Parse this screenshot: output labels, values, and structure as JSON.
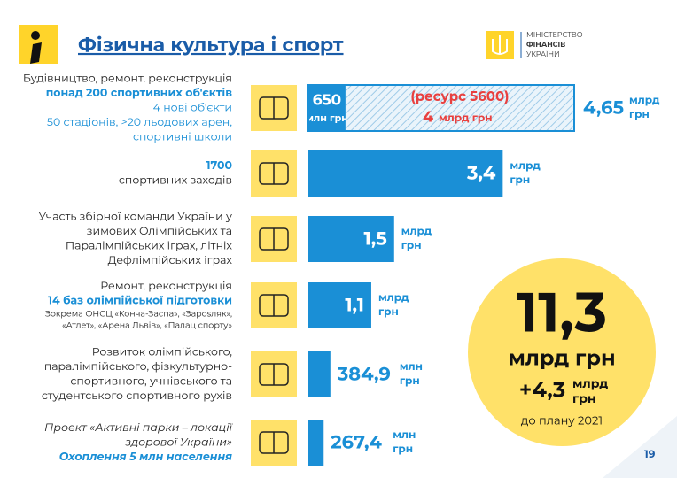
{
  "header": {
    "title": "Фізична культура і спорт",
    "ministry": [
      "МІНІСТЕРСТВО",
      "ФІНАНСІВ",
      "УКРАЇНИ"
    ]
  },
  "rows": [
    {
      "lines": [
        {
          "text": "Будівництво, ремонт, реконструкція",
          "style": "normal"
        },
        {
          "text": "понад 200 спортивних об'єктів",
          "style": "blue-bold"
        },
        {
          "text": "4 нові об'єкти",
          "style": "blue"
        },
        {
          "text": "50 стадіонів, >20 льодових арен,",
          "style": "blue"
        },
        {
          "text": "спортивні школи",
          "style": "blue"
        }
      ],
      "bars": [
        {
          "value": 650,
          "label": "650",
          "unit": [
            "млн грн"
          ]
        },
        {
          "value": 4000,
          "note": "(ресурс 5600)",
          "label": "4",
          "unit": [
            "млрд грн"
          ],
          "hatched": true
        }
      ],
      "total": {
        "value": 4650,
        "label": "4,65",
        "unit": [
          "млрд",
          "грн"
        ]
      }
    },
    {
      "lines": [
        {
          "text": "1700",
          "style": "blue-bold"
        },
        {
          "text": "спортивних заходів",
          "style": "normal"
        }
      ],
      "bars": [
        {
          "value": 3400,
          "label": "3,4",
          "unit": [
            "млрд",
            "грн"
          ]
        }
      ]
    },
    {
      "lines": [
        {
          "text": "Участь  збірної команди України у",
          "style": "normal"
        },
        {
          "text": "зимових Олімпійських та",
          "style": "normal"
        },
        {
          "text": "Паралімпійських іграх, літніх",
          "style": "normal"
        },
        {
          "text": "Дефлімпійських іграх",
          "style": "normal"
        }
      ],
      "bars": [
        {
          "value": 1500,
          "label": "1,5",
          "unit": [
            "млрд",
            "грн"
          ]
        }
      ]
    },
    {
      "lines": [
        {
          "text": "Ремонт, реконструкція",
          "style": "normal"
        },
        {
          "text": "14 баз олімпійської підготовки",
          "style": "blue-bold"
        },
        {
          "text": "Зокрема ОНСЦ «Конча-Заспа», «Зарosляк»,",
          "style": "small"
        },
        {
          "text": "«Атлет», «Арена Львів», «Палац спорту»",
          "style": "small"
        }
      ],
      "bars": [
        {
          "value": 1100,
          "label": "1,1",
          "unit": [
            "млрд",
            "грн"
          ]
        }
      ]
    },
    {
      "lines": [
        {
          "text": "Розвиток олімпійського,",
          "style": "normal"
        },
        {
          "text": "паралімпійського, фізкультурно-",
          "style": "normal"
        },
        {
          "text": "спортивного, учнівського та",
          "style": "normal"
        },
        {
          "text": "студентського спортивного рухів",
          "style": "normal"
        }
      ],
      "bars": [
        {
          "value": 384.9,
          "label": "384,9",
          "unit": [
            "млн",
            "грн"
          ]
        }
      ]
    },
    {
      "lines": [
        {
          "text": "Проект  «Активні парки – локації",
          "style": "italic"
        },
        {
          "text": "здорової України»",
          "style": "italic"
        },
        {
          "text": "Охоплення 5 млн населення",
          "style": "blue-bold-italic"
        }
      ],
      "bars": [
        {
          "value": 267.4,
          "label": "267,4",
          "unit": [
            "млн",
            "грн"
          ]
        }
      ]
    }
  ],
  "summary": {
    "main": "11,3",
    "unit": "млрд грн",
    "extra": "+4,3",
    "extra_unit": [
      "млрд",
      "грн"
    ],
    "note": "до плану 2021"
  },
  "page": "19"
}
